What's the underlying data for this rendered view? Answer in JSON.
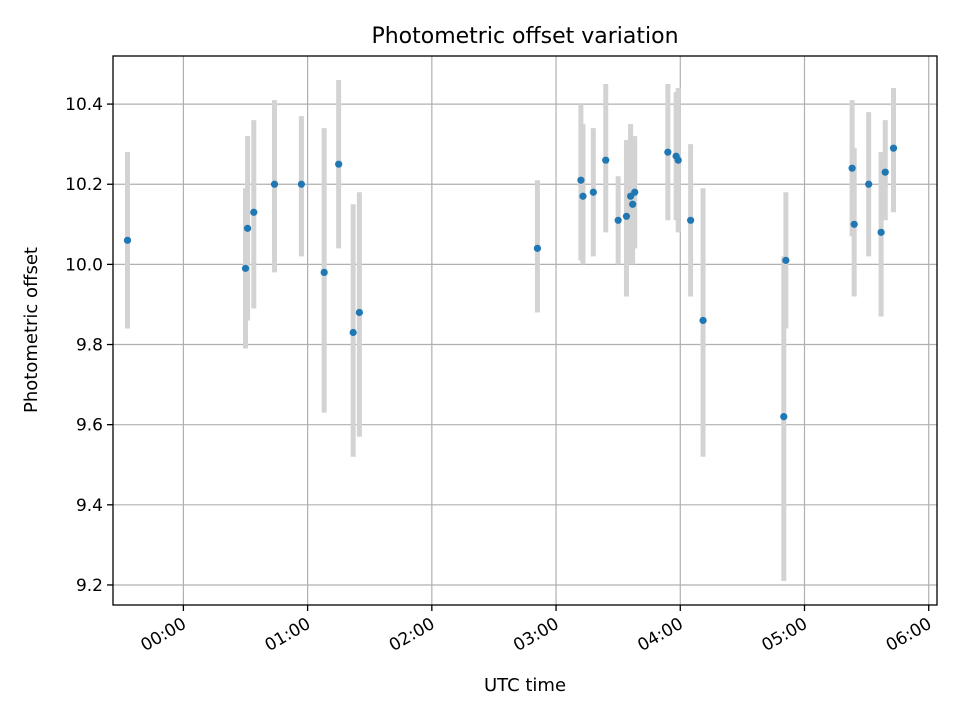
{
  "chart_data": {
    "type": "scatter",
    "title": "Photometric offset variation",
    "xlabel": "UTC time",
    "ylabel": "Photometric offset",
    "x_axis_kind": "time (hours UTC)",
    "xlim": [
      "23:26",
      "06:04"
    ],
    "ylim": [
      9.15,
      10.52
    ],
    "xticks": [
      "00:00",
      "01:00",
      "02:00",
      "03:00",
      "04:00",
      "05:00",
      "06:00"
    ],
    "yticks": [
      9.2,
      9.4,
      9.6,
      9.8,
      10.0,
      10.2,
      10.4
    ],
    "grid": true,
    "point_color": "#1f77b4",
    "errorbar_color": "#d3d3d3",
    "points": [
      {
        "x": "23:33",
        "y": 10.06,
        "ylow": 9.84,
        "yhigh": 10.28
      },
      {
        "x": "00:30",
        "y": 9.99,
        "ylow": 9.79,
        "yhigh": 10.19
      },
      {
        "x": "00:31",
        "y": 10.09,
        "ylow": 9.86,
        "yhigh": 10.32
      },
      {
        "x": "00:34",
        "y": 10.13,
        "ylow": 9.89,
        "yhigh": 10.36
      },
      {
        "x": "00:44",
        "y": 10.2,
        "ylow": 9.98,
        "yhigh": 10.41
      },
      {
        "x": "00:57",
        "y": 10.2,
        "ylow": 10.02,
        "yhigh": 10.37
      },
      {
        "x": "01:08",
        "y": 9.98,
        "ylow": 9.63,
        "yhigh": 10.34
      },
      {
        "x": "01:15",
        "y": 10.25,
        "ylow": 10.04,
        "yhigh": 10.46
      },
      {
        "x": "01:22",
        "y": 9.83,
        "ylow": 9.52,
        "yhigh": 10.15
      },
      {
        "x": "01:25",
        "y": 9.88,
        "ylow": 9.57,
        "yhigh": 10.18
      },
      {
        "x": "02:51",
        "y": 10.04,
        "ylow": 9.88,
        "yhigh": 10.21
      },
      {
        "x": "03:12",
        "y": 10.21,
        "ylow": 10.01,
        "yhigh": 10.4
      },
      {
        "x": "03:13",
        "y": 10.17,
        "ylow": 10.0,
        "yhigh": 10.35
      },
      {
        "x": "03:18",
        "y": 10.18,
        "ylow": 10.02,
        "yhigh": 10.34
      },
      {
        "x": "03:24",
        "y": 10.26,
        "ylow": 10.08,
        "yhigh": 10.45
      },
      {
        "x": "03:30",
        "y": 10.11,
        "ylow": 10.0,
        "yhigh": 10.22
      },
      {
        "x": "03:34",
        "y": 10.12,
        "ylow": 9.92,
        "yhigh": 10.31
      },
      {
        "x": "03:36",
        "y": 10.17,
        "ylow": 10.0,
        "yhigh": 10.35
      },
      {
        "x": "03:37",
        "y": 10.15,
        "ylow": 10.0,
        "yhigh": 10.3
      },
      {
        "x": "03:38",
        "y": 10.18,
        "ylow": 10.04,
        "yhigh": 10.32
      },
      {
        "x": "03:54",
        "y": 10.28,
        "ylow": 10.11,
        "yhigh": 10.45
      },
      {
        "x": "03:58",
        "y": 10.27,
        "ylow": 10.11,
        "yhigh": 10.43
      },
      {
        "x": "03:59",
        "y": 10.26,
        "ylow": 10.08,
        "yhigh": 10.44
      },
      {
        "x": "04:05",
        "y": 10.11,
        "ylow": 9.92,
        "yhigh": 10.3
      },
      {
        "x": "04:11",
        "y": 9.86,
        "ylow": 9.52,
        "yhigh": 10.19
      },
      {
        "x": "04:50",
        "y": 9.62,
        "ylow": 9.21,
        "yhigh": 10.02
      },
      {
        "x": "04:51",
        "y": 10.01,
        "ylow": 9.84,
        "yhigh": 10.18
      },
      {
        "x": "05:23",
        "y": 10.24,
        "ylow": 10.07,
        "yhigh": 10.41
      },
      {
        "x": "05:24",
        "y": 10.1,
        "ylow": 9.92,
        "yhigh": 10.29
      },
      {
        "x": "05:31",
        "y": 10.2,
        "ylow": 10.02,
        "yhigh": 10.38
      },
      {
        "x": "05:37",
        "y": 10.08,
        "ylow": 9.87,
        "yhigh": 10.28
      },
      {
        "x": "05:39",
        "y": 10.23,
        "ylow": 10.11,
        "yhigh": 10.36
      },
      {
        "x": "05:43",
        "y": 10.29,
        "ylow": 10.13,
        "yhigh": 10.44
      }
    ]
  }
}
